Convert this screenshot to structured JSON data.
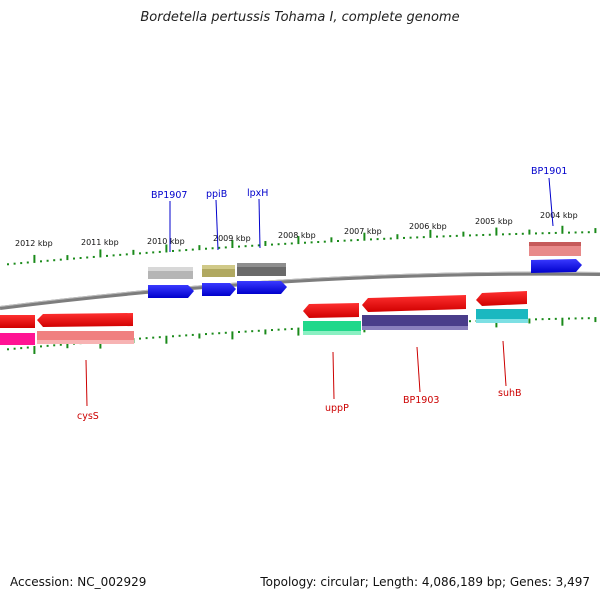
{
  "title": "Bordetella pertussis Tohama I, complete genome",
  "footer": {
    "accession": "Accession: NC_002929",
    "summary": "Topology: circular; Length: 4,086,189 bp; Genes: 3,497"
  },
  "colors": {
    "backbone": "#8a8a8a",
    "tick": "#1a8a1a",
    "label_forward": "#0000cc",
    "label_reverse": "#cc0000"
  },
  "scale_labels": [
    "2012 kbp",
    "2011 kbp",
    "2010 kbp",
    "2009 kbp",
    "2008 kbp",
    "2007 kbp",
    "2006 kbp",
    "2005 kbp",
    "2004 kbp"
  ],
  "genes": [
    {
      "name": "BP1907",
      "strand": "forward"
    },
    {
      "name": "ppiB",
      "strand": "forward"
    },
    {
      "name": "lpxH",
      "strand": "forward"
    },
    {
      "name": "BP1901",
      "strand": "forward"
    },
    {
      "name": "cysS",
      "strand": "reverse"
    },
    {
      "name": "uppP",
      "strand": "reverse"
    },
    {
      "name": "BP1903",
      "strand": "reverse"
    },
    {
      "name": "suhB",
      "strand": "reverse"
    }
  ]
}
